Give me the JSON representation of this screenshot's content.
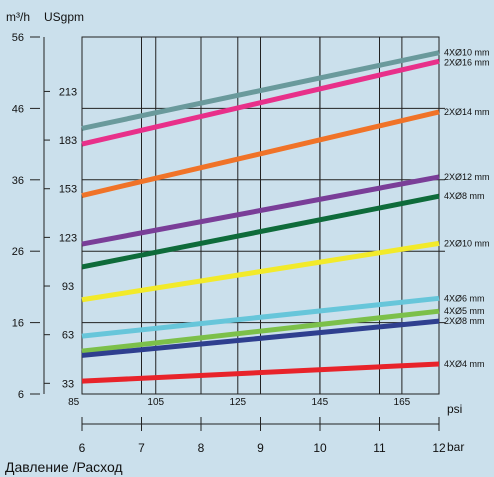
{
  "chart_data": {
    "type": "line",
    "title": "Давление /Расход",
    "x": [
      6,
      12
    ],
    "x_unit": "bar",
    "xlim": [
      6,
      12
    ],
    "x_ticks": [
      6,
      7,
      8,
      9,
      10,
      11,
      12
    ],
    "x2_unit": "psi",
    "x2_ticks": [
      85,
      105,
      125,
      145,
      165
    ],
    "y_unit": "m³/h",
    "ylim": [
      6,
      56
    ],
    "y_ticks": [
      6,
      16,
      26,
      36,
      46,
      56
    ],
    "y2_unit": "USgpm",
    "y2_ticks": [
      33,
      63,
      93,
      123,
      153,
      183,
      213
    ],
    "grid": true,
    "series": [
      {
        "name": "4XØ10 mm",
        "color": "#6a9a9c",
        "values": [
          43.2,
          53.8
        ]
      },
      {
        "name": "2XØ16 mm",
        "color": "#e8308a",
        "values": [
          41.0,
          52.6
        ]
      },
      {
        "name": "2XØ14 mm",
        "color": "#f07328",
        "values": [
          33.8,
          45.5
        ]
      },
      {
        "name": "2XØ12 mm",
        "color": "#7a3e98",
        "values": [
          27.0,
          36.4
        ]
      },
      {
        "name": "4XØ8 mm",
        "color": "#0e6b3a",
        "values": [
          23.8,
          33.7
        ]
      },
      {
        "name": "2XØ10 mm",
        "color": "#f2ea2a",
        "values": [
          19.2,
          27.1
        ]
      },
      {
        "name": "4XØ6 mm",
        "color": "#67c6da",
        "values": [
          14.1,
          19.4
        ]
      },
      {
        "name": "4XØ5 mm",
        "color": "#7cc04a",
        "values": [
          12.0,
          17.6
        ]
      },
      {
        "name": "2XØ8 mm",
        "color": "#2f3f8f",
        "values": [
          11.4,
          16.2
        ]
      },
      {
        "name": "4XØ4 mm",
        "color": "#e8232a",
        "values": [
          7.8,
          10.2
        ]
      }
    ]
  }
}
